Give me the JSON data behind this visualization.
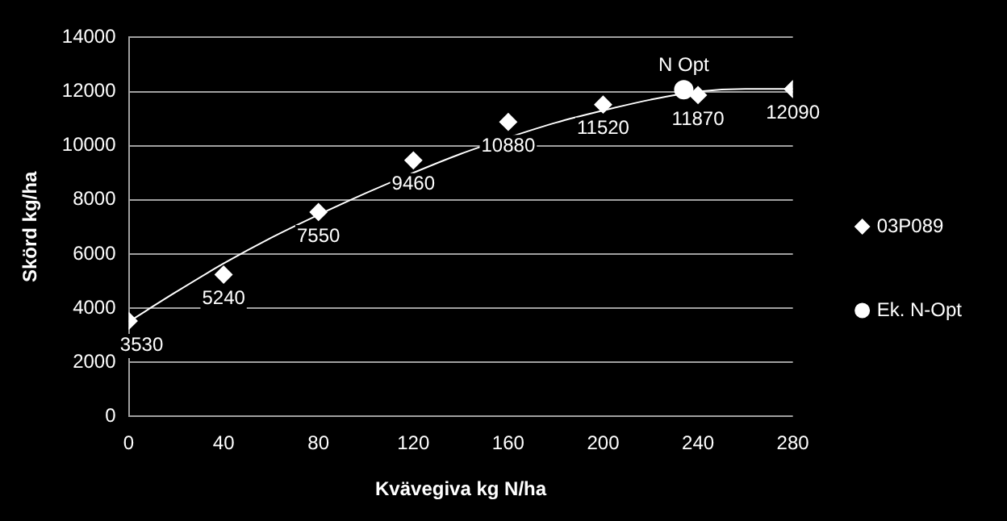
{
  "chart_data": {
    "type": "scatter",
    "xlabel": "Kvävegiva kg N/ha",
    "ylabel": "Skörd kg/ha",
    "xlim": [
      0,
      280
    ],
    "xticks": [
      0,
      40,
      80,
      120,
      160,
      200,
      240,
      280
    ],
    "ylim": [
      0,
      14000
    ],
    "yticks": [
      0,
      2000,
      4000,
      6000,
      8000,
      10000,
      12000,
      14000
    ],
    "grid": "y",
    "legend": "right",
    "series": [
      {
        "name": "03P089",
        "marker": "diamond",
        "color": "#ffffff",
        "data_labels": true,
        "x": [
          0,
          40,
          80,
          120,
          160,
          200,
          240,
          280
        ],
        "values": [
          3530,
          5240,
          7550,
          9460,
          10880,
          11520,
          11870,
          12090
        ]
      },
      {
        "name": "Ek. N-Opt",
        "marker": "circle",
        "color": "#ffffff",
        "x": [
          234
        ],
        "values": [
          12070
        ]
      },
      {
        "type": "line",
        "marker": "none",
        "color": "#ffffff",
        "x": [
          0,
          20,
          40,
          60,
          80,
          100,
          120,
          140,
          160,
          180,
          200,
          220,
          240,
          260,
          280
        ],
        "values": [
          3500,
          4600,
          5650,
          6600,
          7450,
          8250,
          9000,
          9700,
          10300,
          10850,
          11300,
          11700,
          12000,
          12100,
          12100
        ]
      }
    ],
    "annotations": [
      {
        "text": "N Opt",
        "x": 234,
        "y": 12070
      }
    ]
  }
}
